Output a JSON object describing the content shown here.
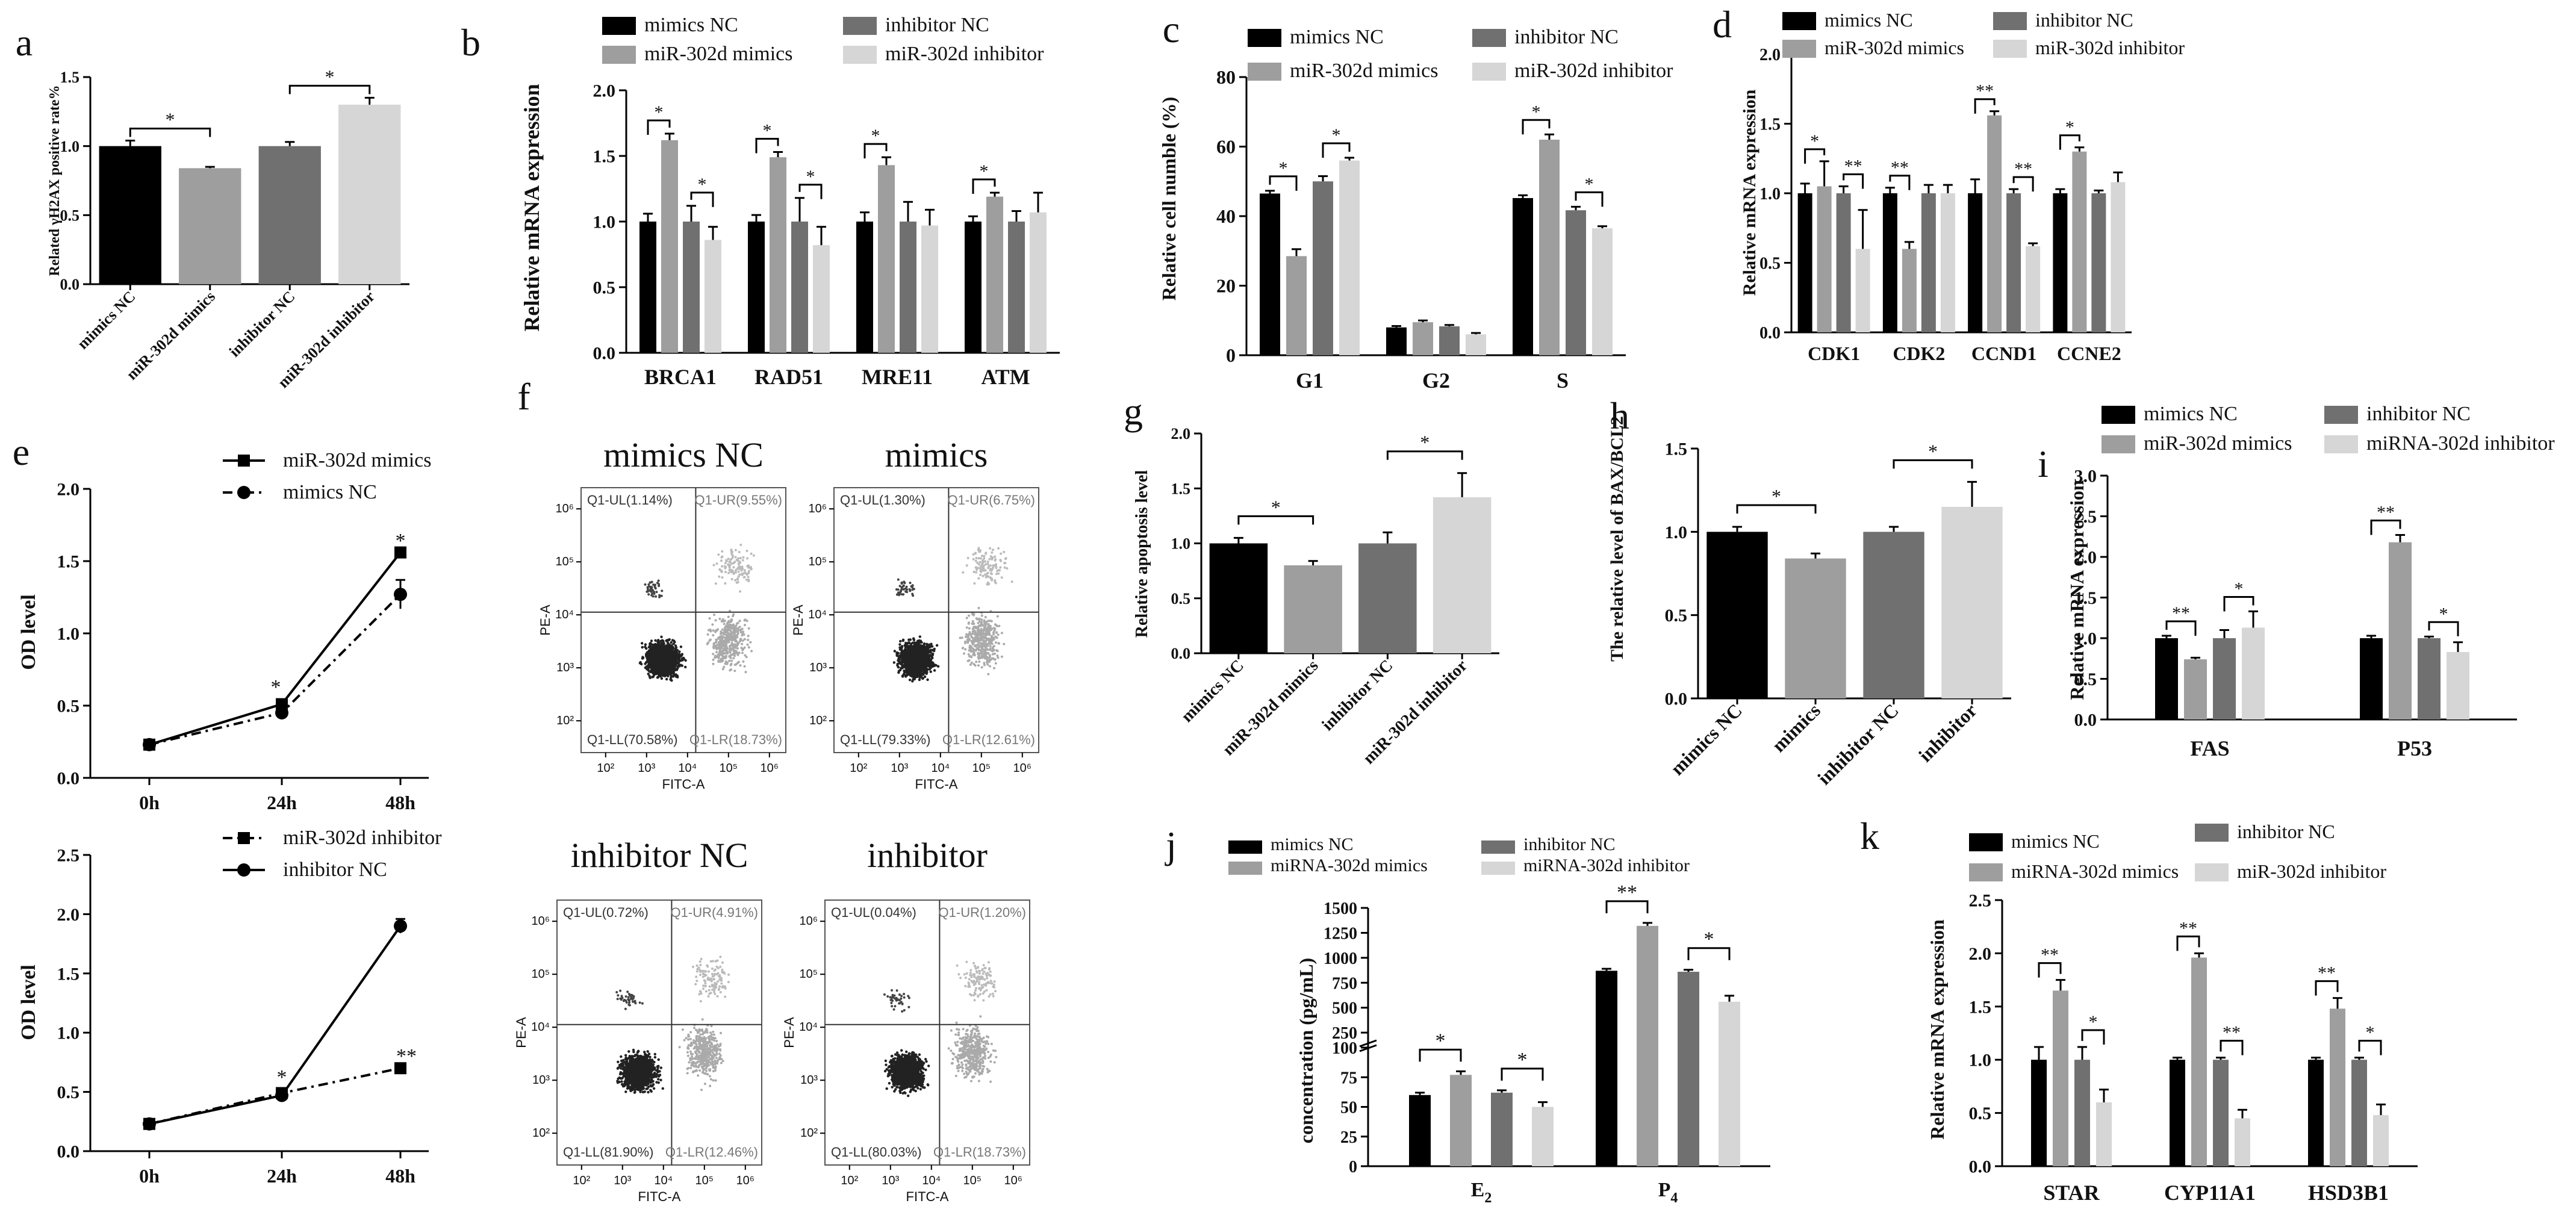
{
  "figure": "miR-302d multi-panel figure",
  "colors": {
    "mimicsNC": "#000000",
    "mimics": "#9e9e9e",
    "inhibitorNC": "#707070",
    "inhibitor": "#d6d6d6"
  },
  "chart_data": [
    {
      "id": "a",
      "panel": "a",
      "type": "bar",
      "ylabel": "Related γH2AX positive rate%",
      "ylim": [
        0,
        1.5
      ],
      "yticks": [
        "0.0",
        "0.5",
        "1.0",
        "1.5"
      ],
      "categories": [
        "mimics NC",
        "miR-302d mimics",
        "inhibitor NC",
        "miR-302d inhibitor"
      ],
      "values": [
        1.0,
        0.84,
        1.0,
        1.3
      ],
      "errors": [
        0.04,
        0.01,
        0.03,
        0.05
      ],
      "sig": [
        "*",
        "*"
      ]
    },
    {
      "id": "b",
      "panel": "b",
      "type": "bar",
      "ylabel": "Relative mRNA expression",
      "ylim": [
        0,
        2.0
      ],
      "yticks": [
        "0.0",
        "0.5",
        "1.0",
        "1.5",
        "2.0"
      ],
      "legend": [
        "mimics NC",
        "miR-302d mimics",
        "inhibitor NC",
        "miR-302d inhibitor"
      ],
      "categories": [
        "BRCA1",
        "RAD51",
        "MRE11",
        "ATM"
      ],
      "series": [
        {
          "name": "mimics NC",
          "values": [
            1.0,
            1.0,
            1.0,
            1.0
          ],
          "errors": [
            0.06,
            0.05,
            0.07,
            0.04
          ]
        },
        {
          "name": "miR-302d mimics",
          "values": [
            1.62,
            1.49,
            1.43,
            1.19
          ],
          "errors": [
            0.05,
            0.04,
            0.06,
            0.03
          ]
        },
        {
          "name": "inhibitor NC",
          "values": [
            1.0,
            1.0,
            1.0,
            1.0
          ],
          "errors": [
            0.12,
            0.18,
            0.15,
            0.08
          ]
        },
        {
          "name": "miR-302d inhibitor",
          "values": [
            0.86,
            0.82,
            0.97,
            1.07
          ],
          "errors": [
            0.1,
            0.14,
            0.12,
            0.15
          ]
        }
      ],
      "sig": [
        "*",
        "*",
        "*",
        "*",
        "*",
        "*"
      ]
    },
    {
      "id": "c",
      "panel": "c",
      "type": "bar",
      "ylabel": "Relative cell numble (%)",
      "ylim": [
        0,
        80
      ],
      "yticks": [
        "0",
        "20",
        "40",
        "60",
        "80"
      ],
      "legend": [
        "mimics NC",
        "miR-302d mimics",
        "inhibitor NC",
        "miR-302d inhibitor"
      ],
      "categories": [
        "G1",
        "G2",
        "S"
      ],
      "series": [
        {
          "name": "mimics NC",
          "values": [
            46.5,
            8.0,
            45.2
          ],
          "errors": [
            0.8,
            0.4,
            0.8
          ]
        },
        {
          "name": "miR-302d mimics",
          "values": [
            28.5,
            9.5,
            62.0
          ],
          "errors": [
            2.0,
            0.5,
            1.5
          ]
        },
        {
          "name": "inhibitor NC",
          "values": [
            50.0,
            8.3,
            41.7
          ],
          "errors": [
            1.5,
            0.4,
            1.0
          ]
        },
        {
          "name": "miR-302d inhibitor",
          "values": [
            56.0,
            6.0,
            36.5
          ],
          "errors": [
            0.8,
            0.4,
            0.6
          ]
        }
      ],
      "sig": [
        "*",
        "*",
        "*",
        "*"
      ]
    },
    {
      "id": "d",
      "panel": "d",
      "type": "bar",
      "ylabel": "Relative mRNA expression",
      "ylim": [
        0,
        2.0
      ],
      "yticks": [
        "0.0",
        "0.5",
        "1.0",
        "1.5",
        "2.0"
      ],
      "legend": [
        "mimics NC",
        "miR-302d mimics",
        "inhibitor NC",
        "miR-302d inhibitor"
      ],
      "categories": [
        "CDK1",
        "CDK2",
        "CCND1",
        "CCNE2"
      ],
      "series": [
        {
          "name": "mimics NC",
          "values": [
            1.0,
            1.0,
            1.0,
            1.0
          ],
          "errors": [
            0.07,
            0.04,
            0.1,
            0.03
          ]
        },
        {
          "name": "miR-302d mimics",
          "values": [
            1.05,
            0.6,
            1.56,
            1.3
          ],
          "errors": [
            0.18,
            0.05,
            0.03,
            0.03
          ]
        },
        {
          "name": "inhibitor NC",
          "values": [
            1.0,
            1.0,
            1.0,
            1.0
          ],
          "errors": [
            0.05,
            0.06,
            0.03,
            0.02
          ]
        },
        {
          "name": "miR-302d inhibitor",
          "values": [
            0.6,
            1.0,
            0.62,
            1.08
          ],
          "errors": [
            0.28,
            0.06,
            0.02,
            0.07
          ]
        }
      ],
      "sig": [
        "*",
        "**",
        "**",
        "**",
        "**",
        "*"
      ]
    },
    {
      "id": "e1",
      "panel": "e",
      "type": "line",
      "ylabel": "OD level",
      "x": [
        "0h",
        "24h",
        "48h"
      ],
      "ylim": [
        0,
        2.0
      ],
      "yticks": [
        "0.0",
        "0.5",
        "1.0",
        "1.5",
        "2.0"
      ],
      "series": [
        {
          "name": "miR-302d mimics",
          "values": [
            0.23,
            0.51,
            1.56
          ],
          "errors": [
            0.02,
            0.03,
            0.03
          ]
        },
        {
          "name": "mimics NC",
          "values": [
            0.23,
            0.45,
            1.27
          ],
          "errors": [
            0.02,
            0.03,
            0.1
          ]
        }
      ],
      "sig": [
        "*",
        "*"
      ]
    },
    {
      "id": "e2",
      "panel": "",
      "type": "line",
      "ylabel": "OD level",
      "x": [
        "0h",
        "24h",
        "48h"
      ],
      "ylim": [
        0,
        2.5
      ],
      "yticks": [
        "0.0",
        "0.5",
        "1.0",
        "1.5",
        "2.0",
        "2.5"
      ],
      "series": [
        {
          "name": "miR-302d inhibitor",
          "values": [
            0.23,
            0.49,
            0.7
          ],
          "errors": [
            0.02,
            0.02,
            0.02
          ]
        },
        {
          "name": "inhibitor NC",
          "values": [
            0.23,
            0.47,
            1.9
          ],
          "errors": [
            0.02,
            0.02,
            0.06
          ]
        }
      ],
      "sig": [
        "*",
        "**"
      ]
    },
    {
      "id": "g",
      "panel": "g",
      "type": "bar",
      "ylabel": "Relative apoptosis level",
      "ylim": [
        0,
        2.0
      ],
      "yticks": [
        "0.0",
        "0.5",
        "1.0",
        "1.5",
        "2.0"
      ],
      "categories": [
        "mimics NC",
        "miR-302d mimics",
        "inhibitor NC",
        "miR-302d inhibitor"
      ],
      "values": [
        1.0,
        0.8,
        1.0,
        1.42
      ],
      "errors": [
        0.05,
        0.04,
        0.1,
        0.22
      ],
      "sig": [
        "*",
        "*"
      ]
    },
    {
      "id": "h",
      "panel": "h",
      "type": "bar",
      "ylabel": "The relative level of BAX/BCL2",
      "ylim": [
        0,
        1.5
      ],
      "yticks": [
        "0.0",
        "0.5",
        "1.0",
        "1.5"
      ],
      "categories": [
        "mimics NC",
        "mimics",
        "inhibitor NC",
        "inhibitor"
      ],
      "values": [
        1.0,
        0.84,
        1.0,
        1.15
      ],
      "errors": [
        0.03,
        0.03,
        0.03,
        0.15
      ],
      "sig": [
        "*",
        "*"
      ]
    },
    {
      "id": "i",
      "panel": "i",
      "type": "bar",
      "ylabel": "Relative mRNA expression",
      "ylim": [
        0,
        3.0
      ],
      "yticks": [
        "0.0",
        "0.5",
        "1.0",
        "1.5",
        "2.0",
        "2.5",
        "3.0"
      ],
      "legend": [
        "mimics NC",
        "miR-302d mimics",
        "inhibitor NC",
        "miRNA-302d inhibitor"
      ],
      "categories": [
        "FAS",
        "P53"
      ],
      "series": [
        {
          "name": "mimics NC",
          "values": [
            1.0,
            1.0
          ],
          "errors": [
            0.03,
            0.03
          ]
        },
        {
          "name": "miR-302d mimics",
          "values": [
            0.74,
            2.18
          ],
          "errors": [
            0.02,
            0.09
          ]
        },
        {
          "name": "inhibitor NC",
          "values": [
            1.0,
            1.0
          ],
          "errors": [
            0.1,
            0.02
          ]
        },
        {
          "name": "miRNA-302d inhibitor",
          "values": [
            1.13,
            0.83
          ],
          "errors": [
            0.2,
            0.12
          ]
        }
      ],
      "sig": [
        "**",
        "*",
        "**",
        "*"
      ]
    },
    {
      "id": "j",
      "panel": "j",
      "type": "bar",
      "ylabel": "concentration (pg/mL)",
      "broken_axis": {
        "lower": [
          0,
          100
        ],
        "upper": [
          100,
          1500
        ]
      },
      "yticks": [
        "0",
        "25",
        "50",
        "75",
        "100",
        "250",
        "500",
        "750",
        "1000",
        "1250",
        "1500"
      ],
      "legend": [
        "mimics NC",
        "miRNA-302d mimics",
        "inhibitor NC",
        "miRNA-302d inhibitor"
      ],
      "categories": [
        "E",
        "P"
      ],
      "category_subscripts": [
        "2",
        "4"
      ],
      "series": [
        {
          "name": "mimics NC",
          "values": [
            60,
            870
          ],
          "errors": [
            2,
            20
          ]
        },
        {
          "name": "miRNA-302d mimics",
          "values": [
            77,
            1320
          ],
          "errors": [
            3,
            30
          ]
        },
        {
          "name": "inhibitor NC",
          "values": [
            62,
            860
          ],
          "errors": [
            2,
            20
          ]
        },
        {
          "name": "miRNA-302d inhibitor",
          "values": [
            50,
            560
          ],
          "errors": [
            4,
            60
          ]
        }
      ],
      "sig": [
        "*",
        "*",
        "**",
        "*"
      ]
    },
    {
      "id": "k",
      "panel": "k",
      "type": "bar",
      "ylabel": "Relative mRNA expression",
      "ylim": [
        0,
        2.5
      ],
      "yticks": [
        "0.0",
        "0.5",
        "1.0",
        "1.5",
        "2.0",
        "2.5"
      ],
      "legend": [
        "mimics NC",
        "miRNA-302d mimics",
        "inhibitor NC",
        "miR-302d inhibitor"
      ],
      "categories": [
        "STAR",
        "CYP11A1",
        "HSD3B1"
      ],
      "series": [
        {
          "name": "mimics NC",
          "values": [
            1.0,
            1.0,
            1.0
          ],
          "errors": [
            0.12,
            0.02,
            0.02
          ]
        },
        {
          "name": "miRNA-302d mimics",
          "values": [
            1.65,
            1.96,
            1.48
          ],
          "errors": [
            0.1,
            0.04,
            0.1
          ]
        },
        {
          "name": "inhibitor NC",
          "values": [
            1.0,
            1.0,
            1.0
          ],
          "errors": [
            0.12,
            0.02,
            0.02
          ]
        },
        {
          "name": "miR-302d inhibitor",
          "values": [
            0.6,
            0.45,
            0.48
          ],
          "errors": [
            0.12,
            0.08,
            0.1
          ]
        }
      ],
      "sig": [
        "**",
        "*",
        "**",
        "**",
        "**",
        "*"
      ]
    }
  ],
  "flow": {
    "panel": "f",
    "xlabel": "FITC-A",
    "ylabel": "PE-A",
    "xticks": [
      "10²",
      "10³",
      "10⁴",
      "10⁵",
      "10⁶"
    ],
    "yticks": [
      "10²",
      "10³",
      "10⁴",
      "10⁵",
      "10⁶"
    ],
    "plots": [
      {
        "title": "mimics NC",
        "ul": "Q1-UL(1.14%)",
        "ur": "Q1-UR(9.55%)",
        "ll": "Q1-LL(70.58%)",
        "lr": "Q1-LR(18.73%)"
      },
      {
        "title": "mimics",
        "ul": "Q1-UL(1.30%)",
        "ur": "Q1-UR(6.75%)",
        "ll": "Q1-LL(79.33%)",
        "lr": "Q1-LR(12.61%)"
      },
      {
        "title": "inhibitor NC",
        "ul": "Q1-UL(0.72%)",
        "ur": "Q1-UR(4.91%)",
        "ll": "Q1-LL(81.90%)",
        "lr": "Q1-LR(12.46%)"
      },
      {
        "title": "inhibitor",
        "ul": "Q1-UL(0.04%)",
        "ur": "Q1-UR(1.20%)",
        "ll": "Q1-LL(80.03%)",
        "lr": "Q1-LR(18.73%)"
      }
    ]
  }
}
